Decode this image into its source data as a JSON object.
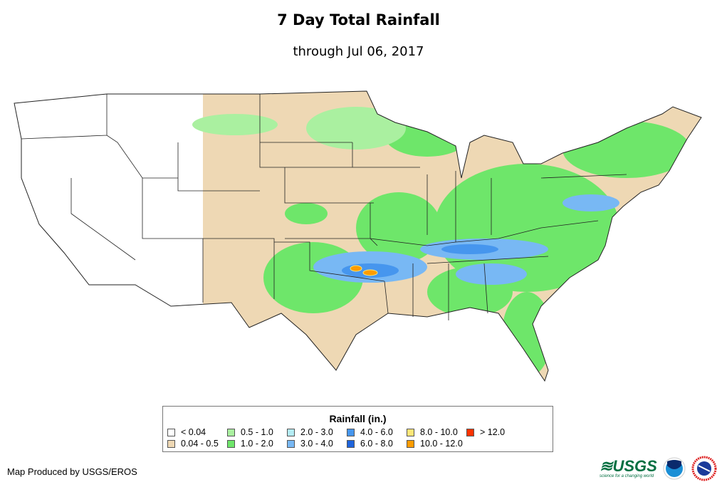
{
  "title": "7 Day Total Rainfall",
  "subtitle": "through Jul 06, 2017",
  "legend": {
    "title": "Rainfall (in.)",
    "items": [
      {
        "label": "< 0.04",
        "color": "#ffffff"
      },
      {
        "label": "0.04 - 0.5",
        "color": "#eed8b4"
      },
      {
        "label": "0.5 - 1.0",
        "color": "#aaf0a0"
      },
      {
        "label": "1.0 - 2.0",
        "color": "#6ee66a"
      },
      {
        "label": "2.0 - 3.0",
        "color": "#b4ecf4"
      },
      {
        "label": "3.0 - 4.0",
        "color": "#78b8f4"
      },
      {
        "label": "4.0 - 6.0",
        "color": "#4696ee"
      },
      {
        "label": "6.0 - 8.0",
        "color": "#1e64dc"
      },
      {
        "label": "8.0 - 10.0",
        "color": "#ffe678"
      },
      {
        "label": "10.0 - 12.0",
        "color": "#ff9c00"
      },
      {
        "label": "> 12.0",
        "color": "#ff3200"
      }
    ]
  },
  "credit": "Map Produced by USGS/EROS",
  "logos": {
    "usgs": "USGS",
    "usgs_tagline": "science for a changing world",
    "noaa": "noaa",
    "nws": "NATIONAL WEATHER SERVICE"
  }
}
